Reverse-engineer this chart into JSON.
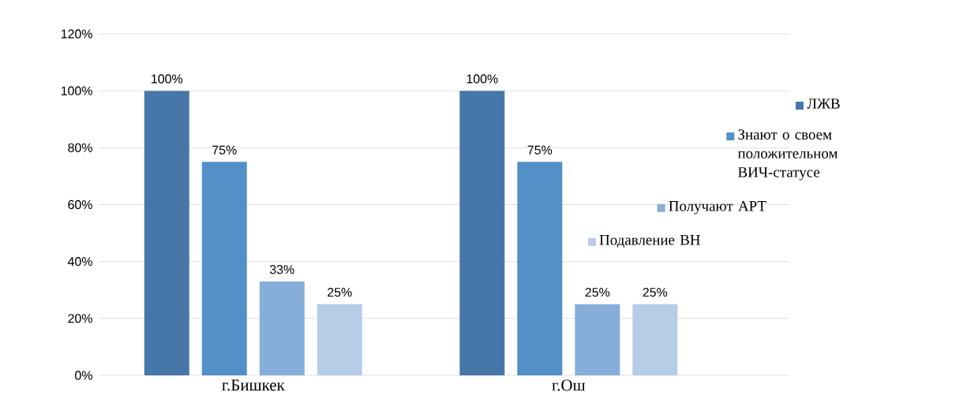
{
  "chart_data": {
    "type": "bar",
    "categories": [
      "г.Бишкек",
      "г.Ош"
    ],
    "series": [
      {
        "name": "ЛЖВ",
        "color": "#4677a8",
        "values": [
          100,
          100
        ],
        "value_labels": [
          "100%",
          "100%"
        ]
      },
      {
        "name": "Знают о своем положительном ВИЧ-статусе",
        "color": "#5390c8",
        "values": [
          75,
          75
        ],
        "value_labels": [
          "75%",
          "75%"
        ]
      },
      {
        "name": "Получают АРТ",
        "color": "#87aedb",
        "values": [
          33,
          25
        ],
        "value_labels": [
          "33%",
          "25%"
        ]
      },
      {
        "name": "Подавление ВН",
        "color": "#b7cce6",
        "values": [
          25,
          25
        ],
        "value_labels": [
          "25%",
          "25%"
        ]
      }
    ],
    "ylim": [
      0,
      120
    ],
    "yticks": [
      {
        "value": 0,
        "label": "0%"
      },
      {
        "value": 20,
        "label": "20%"
      },
      {
        "value": 40,
        "label": "40%"
      },
      {
        "value": 60,
        "label": "60%"
      },
      {
        "value": 80,
        "label": "80%"
      },
      {
        "value": 100,
        "label": "100%"
      },
      {
        "value": 120,
        "label": "120%"
      }
    ],
    "grid": "y",
    "legend": "right"
  }
}
